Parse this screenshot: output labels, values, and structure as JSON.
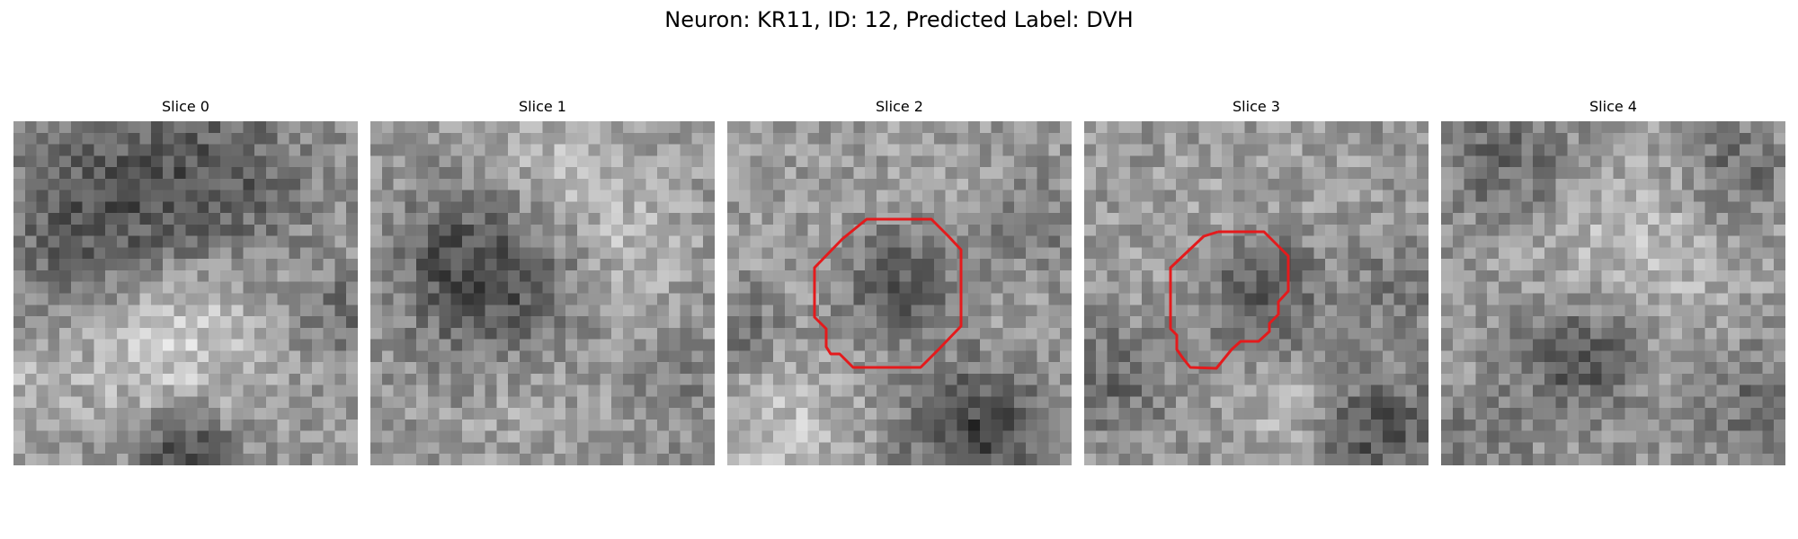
{
  "figure": {
    "title": "Neuron: KR11, ID: 12, Predicted Label: DVH"
  },
  "slices": [
    {
      "title": "Slice 0",
      "has_roi": false
    },
    {
      "title": "Slice 1",
      "has_roi": false
    },
    {
      "title": "Slice 2",
      "has_roi": true
    },
    {
      "title": "Slice 3",
      "has_roi": true
    },
    {
      "title": "Slice 4",
      "has_roi": false
    }
  ],
  "colors": {
    "roi_outline": "#e41a1c",
    "colormap": "gray",
    "background": "#ffffff"
  }
}
